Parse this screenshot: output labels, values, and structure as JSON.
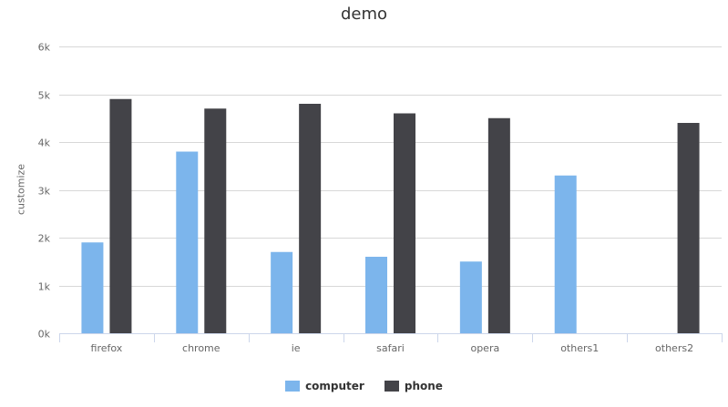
{
  "chart_data": {
    "type": "bar",
    "title": "demo",
    "xlabel": "",
    "ylabel": "customize",
    "categories": [
      "firefox",
      "chrome",
      "ie",
      "safari",
      "opera",
      "others1",
      "others2"
    ],
    "series": [
      {
        "name": "computer",
        "color": "#7cb5ec",
        "values": [
          1900,
          3800,
          1700,
          1600,
          1500,
          3300,
          null
        ]
      },
      {
        "name": "phone",
        "color": "#434348",
        "values": [
          4900,
          4700,
          4800,
          4600,
          4500,
          null,
          4400
        ]
      }
    ],
    "ylim": [
      0,
      6000
    ],
    "yticks": [
      {
        "value": 0,
        "label": "0k"
      },
      {
        "value": 1000,
        "label": "1k"
      },
      {
        "value": 2000,
        "label": "2k"
      },
      {
        "value": 3000,
        "label": "3k"
      },
      {
        "value": 4000,
        "label": "4k"
      },
      {
        "value": 5000,
        "label": "5k"
      },
      {
        "value": 6000,
        "label": "6k"
      }
    ],
    "grid": true,
    "legend_position": "bottom-center"
  }
}
